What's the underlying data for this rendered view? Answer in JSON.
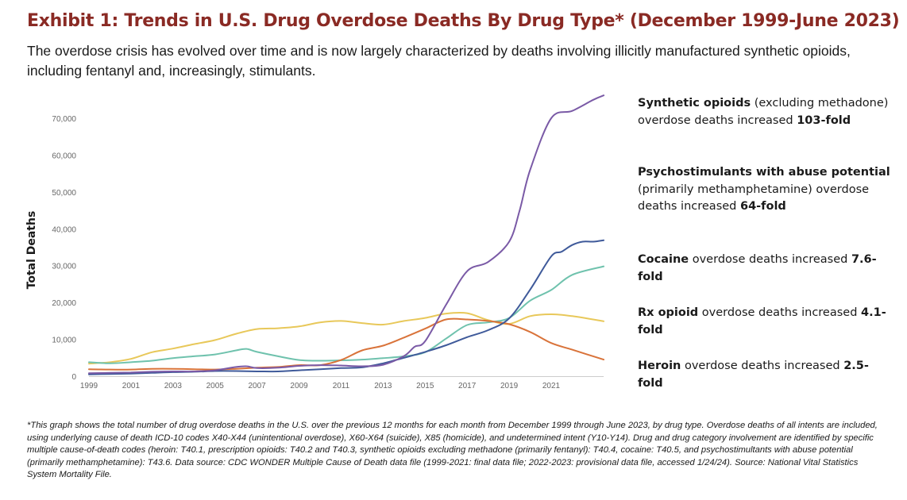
{
  "title": "Exhibit 1: Trends in U.S. Drug Overdose Deaths By Drug Type* (December 1999-June 2023)",
  "subtitle": "The overdose crisis has evolved over time and is now largely characterized by deaths involving illicitly manufactured synthetic opioids, including fentanyl and, increasingly, stimulants.",
  "annotations": [
    {
      "bold_a": "Synthetic opioids",
      "text_a": " (excluding methadone) overdose deaths increased ",
      "bold_b": "103-fold",
      "text_b": ""
    },
    {
      "bold_a": "Psychostimulants with abuse potential",
      "text_a": " (primarily methamphetamine) overdose deaths increased ",
      "bold_b": "64-fold",
      "text_b": ""
    },
    {
      "bold_a": "Cocaine",
      "text_a": " overdose deaths increased ",
      "bold_b": "7.6-fold",
      "text_b": ""
    },
    {
      "bold_a": "Rx opioid",
      "text_a": " overdose deaths increased ",
      "bold_b": "4.1-fold",
      "text_b": ""
    },
    {
      "bold_a": "Heroin",
      "text_a": " overdose deaths increased ",
      "bold_b": "2.5-fold",
      "text_b": ""
    }
  ],
  "footnote": "*This graph shows the total number of drug overdose deaths in the U.S. over the previous 12 months for each month from December 1999 through June 2023, by drug type. Overdose deaths of all intents are included, using underlying cause of death ICD-10 codes X40-X44 (unintentional overdose), X60-X64 (suicide), X85 (homicide), and undetermined intent (Y10-Y14). Drug and drug category involvement are identified by specific multiple cause-of-death codes (heroin: T40.1, prescription opioids: T40.2 and T40.3, synthetic opioids excluding methadone (primarily fentanyl): T40.4, cocaine: T40.5, and psychostimultants with abuse potential (primarily methamphetamine): T43.6. Data source: CDC WONDER Multiple Cause of Death data file (1999-2021: final data file; 2022-2023: provisional data file, accessed 1/24/24). Source: National Vital Statistics System Mortality File.",
  "chart_data": {
    "type": "line",
    "xlabel": "",
    "ylabel": "Total Deaths",
    "xlim": [
      1999,
      2023.5
    ],
    "ylim": [
      0,
      70000
    ],
    "y_ticks": [
      0,
      10000,
      20000,
      30000,
      40000,
      50000,
      60000,
      70000
    ],
    "y_tick_labels": [
      "0",
      "10,000",
      "20,000",
      "30,000",
      "40,000",
      "50,000",
      "60,000",
      "70,000"
    ],
    "x_ticks": [
      1999,
      2001,
      2003,
      2005,
      2007,
      2009,
      2011,
      2013,
      2015,
      2017,
      2019,
      2021
    ],
    "x_tick_labels": [
      "1999",
      "2001",
      "2003",
      "2005",
      "2007",
      "2009",
      "2011",
      "2013",
      "2015",
      "2017",
      "2019",
      "2021"
    ],
    "grid": false,
    "legend": "none",
    "series": [
      {
        "color": "#e8c85a",
        "x": [
          1999,
          1999.5,
          2000,
          2001,
          2002,
          2003,
          2004,
          2005,
          2006,
          2007,
          2008,
          2009,
          2010,
          2011,
          2012,
          2013,
          2014,
          2015,
          2016,
          2017,
          2018,
          2019,
          2020,
          2021,
          2022,
          2023.5
        ],
        "y": [
          3400,
          3600,
          3800,
          4700,
          6500,
          7500,
          8700,
          9800,
          11500,
          12800,
          13000,
          13500,
          14600,
          15000,
          14400,
          14000,
          15000,
          15800,
          17000,
          17100,
          15200,
          14200,
          16300,
          16800,
          16300,
          14900
        ]
      },
      {
        "color": "#6fc2ad",
        "x": [
          1999,
          2000,
          2001,
          2002,
          2003,
          2004,
          2005,
          2006,
          2006.5,
          2007,
          2008,
          2009,
          2010,
          2011,
          2012,
          2013,
          2014,
          2015,
          2016,
          2017,
          2018,
          2019,
          2020,
          2021,
          2022,
          2023.5
        ],
        "y": [
          3800,
          3500,
          3800,
          4200,
          4900,
          5400,
          5900,
          7000,
          7400,
          6600,
          5400,
          4400,
          4200,
          4300,
          4500,
          4900,
          5400,
          6500,
          10200,
          13900,
          14600,
          15800,
          20500,
          23400,
          27500,
          29800
        ]
      },
      {
        "color": "#d9733a",
        "x": [
          1999,
          2000,
          2001,
          2002,
          2003,
          2004,
          2005,
          2006,
          2007,
          2008,
          2009,
          2010,
          2011,
          2012,
          2013,
          2014,
          2015,
          2016,
          2017,
          2018,
          2019,
          2020,
          2021,
          2022,
          2023.5
        ],
        "y": [
          1900,
          1800,
          1800,
          2000,
          2000,
          1900,
          1800,
          2000,
          2300,
          2500,
          3000,
          3000,
          4400,
          7000,
          8300,
          10500,
          12900,
          15400,
          15400,
          15000,
          14100,
          12000,
          9000,
          7200,
          4500
        ]
      },
      {
        "color": "#3f5a9a",
        "x": [
          1999,
          2000,
          2001,
          2002,
          2003,
          2004,
          2005,
          2006,
          2007,
          2008,
          2009,
          2010,
          2011,
          2012,
          2013,
          2014,
          2015,
          2016,
          2017,
          2018,
          2019,
          2020,
          2021,
          2021.5,
          2022,
          2022.5,
          2023,
          2023.5
        ],
        "y": [
          500,
          600,
          700,
          900,
          1100,
          1200,
          1400,
          1400,
          1300,
          1300,
          1600,
          1900,
          2200,
          2400,
          3500,
          5000,
          6600,
          8400,
          10600,
          12500,
          15700,
          23500,
          32500,
          33800,
          35600,
          36500,
          36500,
          36900
        ]
      },
      {
        "color": "#7a5aa6",
        "x": [
          1999,
          2000,
          2001,
          2002,
          2003,
          2004,
          2005,
          2006,
          2006.5,
          2007,
          2008,
          2009,
          2010,
          2011,
          2012,
          2013,
          2014,
          2014.5,
          2015,
          2016,
          2017,
          2018,
          2019,
          2019.5,
          2020,
          2021,
          2022,
          2023,
          2023.5
        ],
        "y": [
          800,
          900,
          1000,
          1200,
          1300,
          1300,
          1600,
          2500,
          2700,
          2200,
          2300,
          2800,
          3000,
          2900,
          2700,
          3100,
          5500,
          8000,
          9500,
          19400,
          28500,
          31000,
          36500,
          45000,
          56000,
          70000,
          72000,
          75000,
          76200
        ]
      }
    ]
  }
}
